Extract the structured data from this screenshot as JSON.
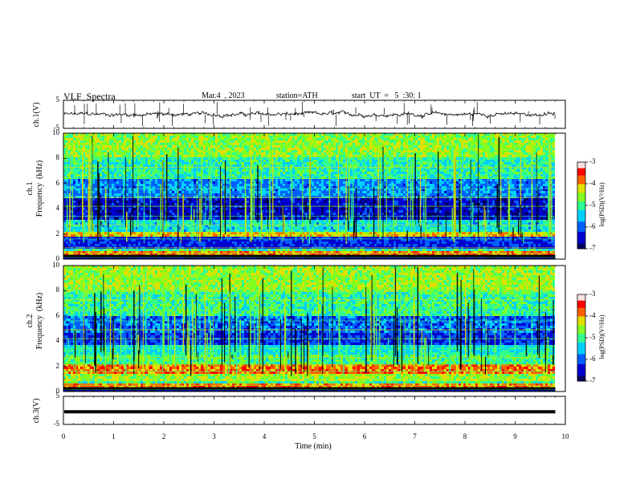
{
  "header": {
    "title": "VLF  Spectra",
    "date": "Mar.4  , 2023",
    "station": "station=ATH",
    "start_ut": "start  UT  =   5  :30: 1"
  },
  "colors": {
    "wave": "#000000",
    "frame": "#000000",
    "background": "#ffffff"
  },
  "chart_data": [
    {
      "type": "line",
      "panel": "ch.1 waveform",
      "ylabel": "ch.1(V)",
      "ylim": [
        -5,
        5
      ],
      "yticks": [
        "5",
        "-5"
      ],
      "x_unit": "min",
      "approx_level_V": 0,
      "note_visible": "noisy trace with many spikes around 0 V"
    },
    {
      "type": "heatmap",
      "panel": "ch.1 spectrogram",
      "ylabel": "ch.1\nFrequency  (kHz)",
      "ylim": [
        0,
        10
      ],
      "yticks": [
        "0",
        "2",
        "4",
        "6",
        "8",
        "10"
      ],
      "colorbar": {
        "label": "log(PSD)(V²/Hz)",
        "range": [
          -7,
          -3
        ],
        "ticks": [
          "-3",
          "-4",
          "-5",
          "-6",
          "-7"
        ]
      }
    },
    {
      "type": "heatmap",
      "panel": "ch.2 spectrogram",
      "ylabel": "ch.2\nFrequency  (kHz)",
      "ylim": [
        0,
        10
      ],
      "yticks": [
        "0",
        "2",
        "4",
        "6",
        "8",
        "10"
      ],
      "colorbar": {
        "label": "log(PSD)(V²/Hz)",
        "range": [
          -7,
          -3
        ],
        "ticks": [
          "-3",
          "-4",
          "-5",
          "-6",
          "-7"
        ]
      }
    },
    {
      "type": "line",
      "panel": "ch.3 waveform",
      "ylabel": "ch.3(V)",
      "ylim": [
        -5,
        5
      ],
      "yticks": [
        "5",
        "-5"
      ],
      "approx_level_V": -0.5
    }
  ],
  "xaxis": {
    "label": "Time  (min)",
    "ticks": [
      "0",
      "1",
      "2",
      "3",
      "4",
      "5",
      "6",
      "7",
      "8",
      "9",
      "10"
    ],
    "range": [
      0,
      10
    ],
    "data_end_min": 9.8
  }
}
